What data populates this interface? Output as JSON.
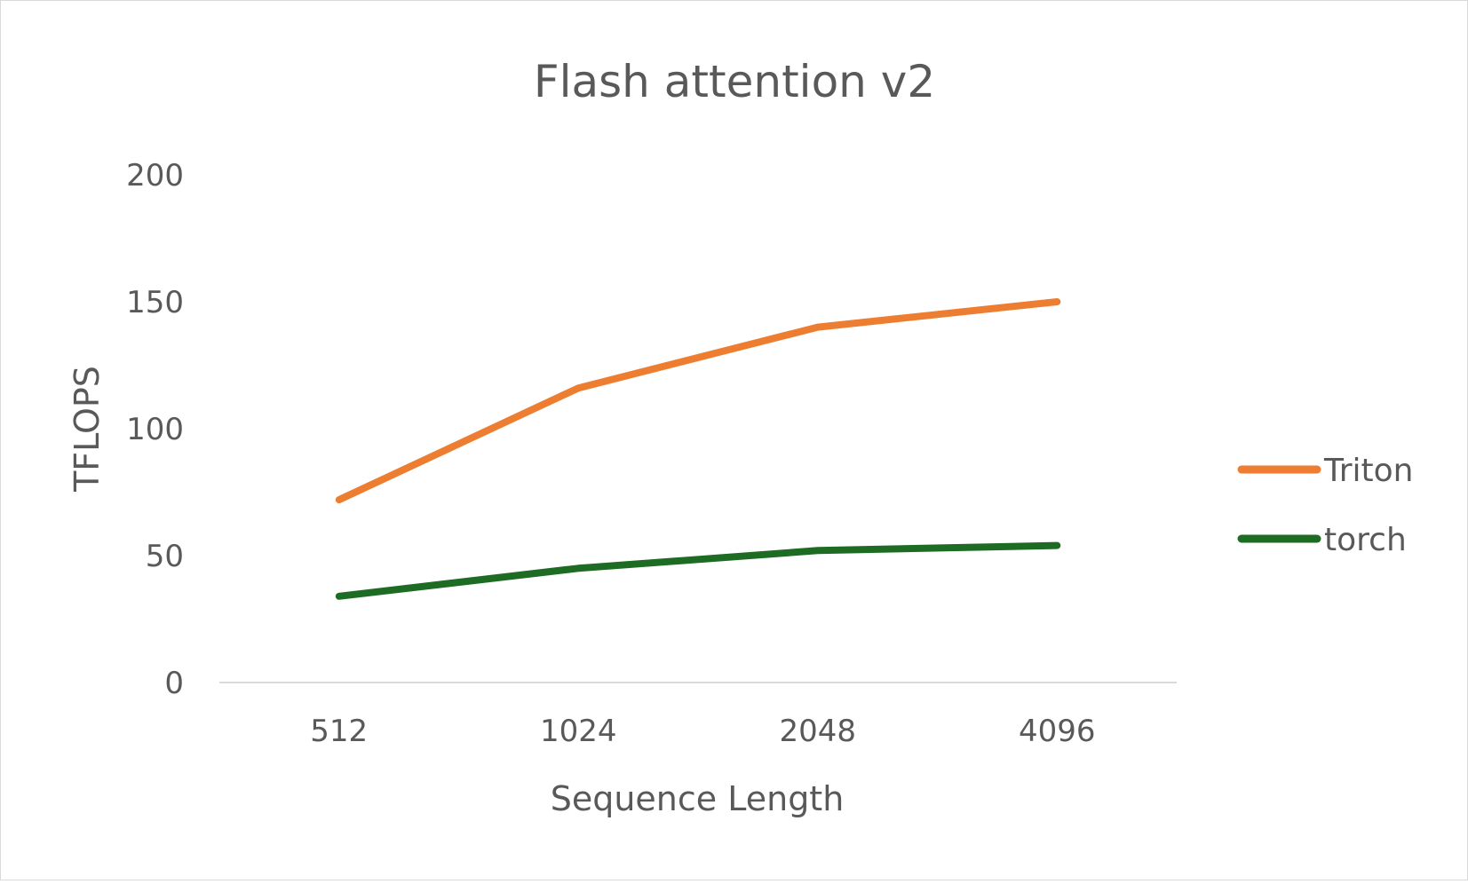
{
  "chart_data": {
    "type": "line",
    "title": "Flash attention v2",
    "xlabel": "Sequence Length",
    "ylabel": "TFLOPS",
    "categories": [
      "512",
      "1024",
      "2048",
      "4096"
    ],
    "yticks": [
      "0",
      "50",
      "100",
      "150",
      "200"
    ],
    "ylim": [
      0,
      200
    ],
    "grid": false,
    "legend_position": "right",
    "series": [
      {
        "name": "Triton",
        "color": "#ED7D31",
        "values": [
          72,
          116,
          140,
          150
        ]
      },
      {
        "name": "torch",
        "color": "#1E6B23",
        "values": [
          34,
          45,
          52,
          54
        ]
      }
    ]
  }
}
